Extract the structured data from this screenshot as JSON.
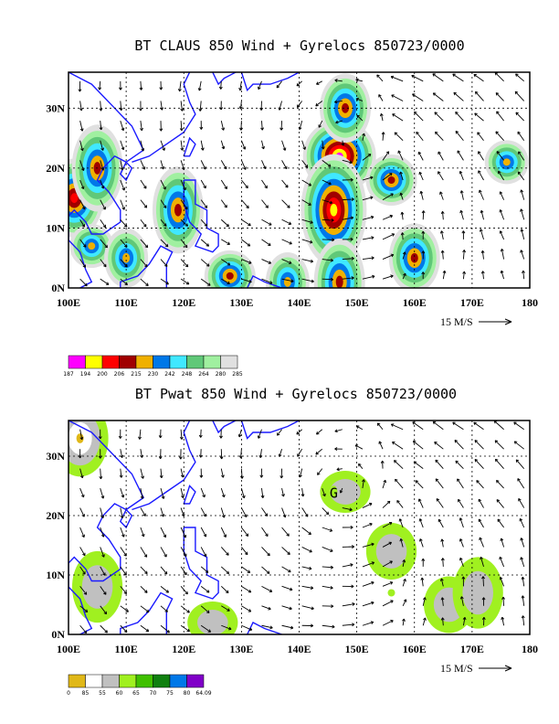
{
  "colors": {
    "coast": "#1a1aff",
    "grid": "#000000",
    "vector": "#000000",
    "claus": [
      "#ff00ff",
      "#ffff00",
      "#ff0000",
      "#a00000",
      "#f0b000",
      "#0078e8",
      "#40e8ff",
      "#60c878",
      "#a0f0a0",
      "#e0e0e0"
    ],
    "pwat": [
      "#e0b818",
      "#ffffff",
      "#c0c0c0",
      "#a0f020",
      "#40c000",
      "#108010",
      "#0078e8",
      "#8000c8"
    ]
  },
  "chart_data": [
    {
      "type": "heatmap",
      "title": "BT CLAUS 850 Wind + Gyrelocs 850723/0000",
      "xlabel": "",
      "ylabel": "",
      "xticks": [
        "100E",
        "110E",
        "120E",
        "130E",
        "140E",
        "150E",
        "160E",
        "170E",
        "180"
      ],
      "yticks": [
        "0N",
        "10N",
        "20N",
        "30N"
      ],
      "xlim": [
        100,
        180
      ],
      "ylim": [
        0,
        36
      ],
      "grid": true,
      "vector_reference": "15 M/S",
      "colorbar_labels": [
        "187",
        "194",
        "200",
        "206",
        "215",
        "230",
        "242",
        "248",
        "264",
        "280",
        "285"
      ],
      "gyre_marker": "",
      "features": [
        {
          "lon": 147,
          "lat": 22,
          "level": 0
        },
        {
          "lon": 148,
          "lat": 30,
          "level": 3
        },
        {
          "lon": 146,
          "lat": 13,
          "level": 1
        },
        {
          "lon": 156,
          "lat": 18,
          "level": 3
        },
        {
          "lon": 101,
          "lat": 15,
          "level": 2
        },
        {
          "lon": 105,
          "lat": 20,
          "level": 3
        },
        {
          "lon": 176,
          "lat": 21,
          "level": 4
        },
        {
          "lon": 160,
          "lat": 5,
          "level": 3
        },
        {
          "lon": 147,
          "lat": 1,
          "level": 3
        },
        {
          "lon": 128,
          "lat": 2,
          "level": 3
        },
        {
          "lon": 138,
          "lat": 1,
          "level": 4
        },
        {
          "lon": 119,
          "lat": 13,
          "level": 3
        },
        {
          "lon": 104,
          "lat": 7,
          "level": 4
        },
        {
          "lon": 110,
          "lat": 5,
          "level": 4
        }
      ]
    },
    {
      "type": "heatmap",
      "title": "BT Pwat 850 Wind + Gyrelocs 850723/0000",
      "xlabel": "",
      "ylabel": "",
      "xticks": [
        "100E",
        "110E",
        "120E",
        "130E",
        "140E",
        "150E",
        "160E",
        "170E",
        "180"
      ],
      "yticks": [
        "0N",
        "10N",
        "20N",
        "30N"
      ],
      "xlim": [
        100,
        180
      ],
      "ylim": [
        0,
        36
      ],
      "grid": true,
      "vector_reference": "15 M/S",
      "colorbar_labels": [
        "0",
        "85",
        "55",
        "60",
        "65",
        "70",
        "75",
        "80",
        "64.09"
      ],
      "gyre_marker": "G",
      "gyre_lon": 146,
      "gyre_lat": 23,
      "features": [
        {
          "lon": 148,
          "lat": 24,
          "level": 2
        },
        {
          "lon": 156,
          "lat": 14,
          "level": 2
        },
        {
          "lon": 146,
          "lat": 24,
          "level": 3
        },
        {
          "lon": 156,
          "lat": 7,
          "level": 3
        },
        {
          "lon": 102,
          "lat": 33,
          "level": 0
        },
        {
          "lon": 105,
          "lat": 8,
          "level": 2
        },
        {
          "lon": 125,
          "lat": 2,
          "level": 2
        },
        {
          "lon": 166,
          "lat": 5,
          "level": 2
        },
        {
          "lon": 171,
          "lat": 7,
          "level": 2
        }
      ]
    }
  ]
}
